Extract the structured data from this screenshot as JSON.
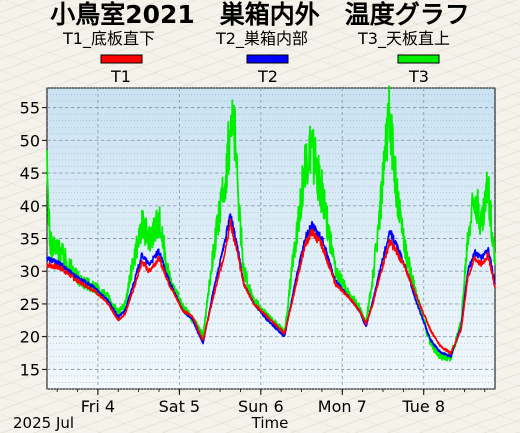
{
  "chart_data": {
    "type": "line",
    "title": "小鳥室2021　巣箱内外　温度グラフ",
    "xlabel": "Time",
    "ylabel": "",
    "date_label": "2025 Jul",
    "x_ticks": [
      "Fri 4",
      "Sat 5",
      "Sun 6",
      "Mon 7",
      "Tue 8"
    ],
    "y_ticks": [
      15,
      20,
      25,
      30,
      35,
      40,
      45,
      50,
      55
    ],
    "ylim": [
      12,
      58
    ],
    "xlim": [
      "2025-07-03 09:00",
      "2025-07-08 21:00"
    ],
    "grid": true,
    "legend_position": "top",
    "series": [
      {
        "name": "T1_底板直下",
        "legend_label": "T1",
        "color": "#ff0000",
        "points": [
          [
            "2025-07-03 09:00",
            31
          ],
          [
            "2025-07-03 13:00",
            30.5
          ],
          [
            "2025-07-03 18:00",
            28.5
          ],
          [
            "2025-07-03 23:00",
            27
          ],
          [
            "2025-07-04 03:00",
            25
          ],
          [
            "2025-07-04 06:00",
            22.5
          ],
          [
            "2025-07-04 08:00",
            23.5
          ],
          [
            "2025-07-04 11:00",
            28
          ],
          [
            "2025-07-04 13:00",
            31.5
          ],
          [
            "2025-07-04 15:00",
            30
          ],
          [
            "2025-07-04 18:00",
            32
          ],
          [
            "2025-07-04 21:00",
            28
          ],
          [
            "2025-07-05 01:00",
            24
          ],
          [
            "2025-07-05 04:00",
            23
          ],
          [
            "2025-07-05 06:00",
            20.5
          ],
          [
            "2025-07-05 07:00",
            19.5
          ],
          [
            "2025-07-05 10:00",
            26
          ],
          [
            "2025-07-05 13:00",
            32
          ],
          [
            "2025-07-05 15:00",
            37.5
          ],
          [
            "2025-07-05 17:00",
            33
          ],
          [
            "2025-07-05 19:00",
            28
          ],
          [
            "2025-07-05 22:00",
            25
          ],
          [
            "2025-07-06 02:00",
            23
          ],
          [
            "2025-07-06 06:00",
            21
          ],
          [
            "2025-07-06 07:00",
            20.5
          ],
          [
            "2025-07-06 10:00",
            27
          ],
          [
            "2025-07-06 13:00",
            34
          ],
          [
            "2025-07-06 15:00",
            36
          ],
          [
            "2025-07-06 18:00",
            34
          ],
          [
            "2025-07-06 22:00",
            28
          ],
          [
            "2025-07-07 02:00",
            26
          ],
          [
            "2025-07-07 05:00",
            24
          ],
          [
            "2025-07-07 07:00",
            22
          ],
          [
            "2025-07-07 09:00",
            25
          ],
          [
            "2025-07-07 12:00",
            31
          ],
          [
            "2025-07-07 14:00",
            34.5
          ],
          [
            "2025-07-07 16:00",
            33
          ],
          [
            "2025-07-07 19:00",
            30
          ],
          [
            "2025-07-07 22:00",
            26
          ],
          [
            "2025-07-08 02:00",
            21
          ],
          [
            "2025-07-08 05:00",
            18.5
          ],
          [
            "2025-07-08 08:00",
            17.5
          ],
          [
            "2025-07-08 11:00",
            21
          ],
          [
            "2025-07-08 13:00",
            29
          ],
          [
            "2025-07-08 15:00",
            32
          ],
          [
            "2025-07-08 17:00",
            31
          ],
          [
            "2025-07-08 19:00",
            32.5
          ],
          [
            "2025-07-08 21:00",
            27.5
          ]
        ]
      },
      {
        "name": "T2_巣箱内部",
        "legend_label": "T2",
        "color": "#0000ff",
        "points": [
          [
            "2025-07-03 09:00",
            32
          ],
          [
            "2025-07-03 13:00",
            31
          ],
          [
            "2025-07-03 18:00",
            29
          ],
          [
            "2025-07-03 23:00",
            27.5
          ],
          [
            "2025-07-04 03:00",
            25.5
          ],
          [
            "2025-07-04 06:00",
            23
          ],
          [
            "2025-07-04 08:00",
            24
          ],
          [
            "2025-07-04 11:00",
            29
          ],
          [
            "2025-07-04 13:00",
            32.5
          ],
          [
            "2025-07-04 15:00",
            31
          ],
          [
            "2025-07-04 18:00",
            33
          ],
          [
            "2025-07-04 21:00",
            28.5
          ],
          [
            "2025-07-05 01:00",
            24
          ],
          [
            "2025-07-05 04:00",
            22.5
          ],
          [
            "2025-07-05 06:00",
            20
          ],
          [
            "2025-07-05 07:00",
            19
          ],
          [
            "2025-07-05 10:00",
            27
          ],
          [
            "2025-07-05 13:00",
            33.5
          ],
          [
            "2025-07-05 15:00",
            38.5
          ],
          [
            "2025-07-05 17:00",
            34
          ],
          [
            "2025-07-05 19:00",
            28
          ],
          [
            "2025-07-05 22:00",
            25
          ],
          [
            "2025-07-06 02:00",
            22.5
          ],
          [
            "2025-07-06 06:00",
            20.5
          ],
          [
            "2025-07-06 07:00",
            20
          ],
          [
            "2025-07-06 10:00",
            28
          ],
          [
            "2025-07-06 13:00",
            35
          ],
          [
            "2025-07-06 15:00",
            37
          ],
          [
            "2025-07-06 18:00",
            35
          ],
          [
            "2025-07-06 22:00",
            28.5
          ],
          [
            "2025-07-07 02:00",
            26
          ],
          [
            "2025-07-07 05:00",
            24
          ],
          [
            "2025-07-07 07:00",
            21.5
          ],
          [
            "2025-07-07 09:00",
            25.5
          ],
          [
            "2025-07-07 12:00",
            32
          ],
          [
            "2025-07-07 14:00",
            36
          ],
          [
            "2025-07-07 16:00",
            34
          ],
          [
            "2025-07-07 19:00",
            30
          ],
          [
            "2025-07-07 22:00",
            25
          ],
          [
            "2025-07-08 02:00",
            19.5
          ],
          [
            "2025-07-08 05:00",
            17.5
          ],
          [
            "2025-07-08 08:00",
            17
          ],
          [
            "2025-07-08 11:00",
            21.5
          ],
          [
            "2025-07-08 13:00",
            30
          ],
          [
            "2025-07-08 15:00",
            33
          ],
          [
            "2025-07-08 17:00",
            32
          ],
          [
            "2025-07-08 19:00",
            33.5
          ],
          [
            "2025-07-08 21:00",
            28
          ]
        ]
      },
      {
        "name": "T3_天板直上",
        "legend_label": "T3",
        "color": "#00ee00",
        "points": [
          [
            "2025-07-03 09:00",
            45
          ],
          [
            "2025-07-03 10:00",
            34
          ],
          [
            "2025-07-03 13:00",
            33
          ],
          [
            "2025-07-03 18:00",
            29
          ],
          [
            "2025-07-03 23:00",
            27.5
          ],
          [
            "2025-07-04 03:00",
            26
          ],
          [
            "2025-07-04 06:00",
            23.5
          ],
          [
            "2025-07-04 08:00",
            25
          ],
          [
            "2025-07-04 11:00",
            33
          ],
          [
            "2025-07-04 13:00",
            37
          ],
          [
            "2025-07-04 15:00",
            35
          ],
          [
            "2025-07-04 18:00",
            38
          ],
          [
            "2025-07-04 21:00",
            29
          ],
          [
            "2025-07-05 01:00",
            24.5
          ],
          [
            "2025-07-05 04:00",
            22.5
          ],
          [
            "2025-07-05 06:00",
            21
          ],
          [
            "2025-07-05 07:00",
            20
          ],
          [
            "2025-07-05 10:00",
            33
          ],
          [
            "2025-07-05 13:00",
            42
          ],
          [
            "2025-07-05 15:00",
            51
          ],
          [
            "2025-07-05 16:00",
            54
          ],
          [
            "2025-07-05 17:00",
            44
          ],
          [
            "2025-07-05 19:00",
            30
          ],
          [
            "2025-07-05 22:00",
            25.5
          ],
          [
            "2025-07-06 02:00",
            23
          ],
          [
            "2025-07-06 06:00",
            21
          ],
          [
            "2025-07-06 07:00",
            20.5
          ],
          [
            "2025-07-06 10:00",
            34
          ],
          [
            "2025-07-06 13:00",
            46
          ],
          [
            "2025-07-06 15:00",
            49
          ],
          [
            "2025-07-06 18:00",
            42
          ],
          [
            "2025-07-06 22:00",
            30
          ],
          [
            "2025-07-07 02:00",
            26.5
          ],
          [
            "2025-07-07 05:00",
            24.5
          ],
          [
            "2025-07-07 07:00",
            22
          ],
          [
            "2025-07-07 09:00",
            29
          ],
          [
            "2025-07-07 12:00",
            44
          ],
          [
            "2025-07-07 14:00",
            54
          ],
          [
            "2025-07-07 16:00",
            42
          ],
          [
            "2025-07-07 19:00",
            32
          ],
          [
            "2025-07-07 22:00",
            26
          ],
          [
            "2025-07-08 02:00",
            19
          ],
          [
            "2025-07-08 05:00",
            17
          ],
          [
            "2025-07-08 08:00",
            17
          ],
          [
            "2025-07-08 11:00",
            22
          ],
          [
            "2025-07-08 13:00",
            35
          ],
          [
            "2025-07-08 15:00",
            42
          ],
          [
            "2025-07-08 17:00",
            37
          ],
          [
            "2025-07-08 19:00",
            43
          ],
          [
            "2025-07-08 21:00",
            31
          ]
        ]
      }
    ]
  }
}
